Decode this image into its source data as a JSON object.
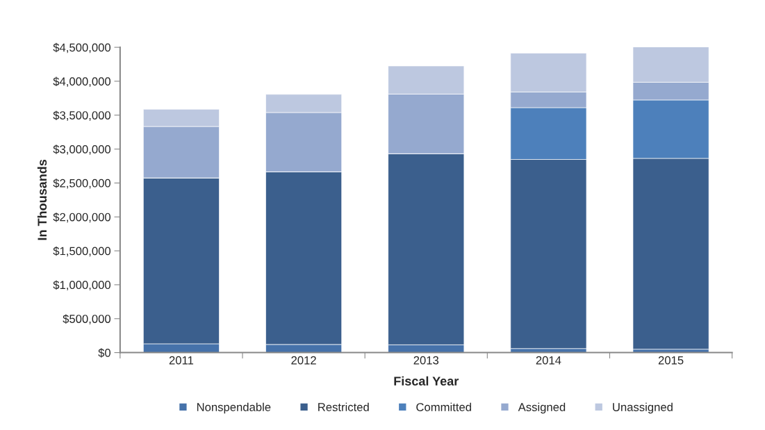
{
  "chart_data": {
    "type": "bar",
    "stacked": true,
    "xlabel": "Fiscal Year",
    "ylabel": "In Thousands",
    "categories": [
      "2011",
      "2012",
      "2013",
      "2014",
      "2015"
    ],
    "series": [
      {
        "name": "Nonspendable",
        "color": "#4672aa",
        "values": [
          130000,
          120000,
          115000,
          60000,
          50000
        ]
      },
      {
        "name": "Restricted",
        "color": "#3b5f8d",
        "values": [
          2445000,
          2545000,
          2817000,
          2787000,
          2813000
        ]
      },
      {
        "name": "Committed",
        "color": "#4d80bb",
        "values": [
          0,
          0,
          0,
          764000,
          861000
        ]
      },
      {
        "name": "Assigned",
        "color": "#95a9cf",
        "values": [
          758000,
          874000,
          878000,
          230000,
          261000
        ]
      },
      {
        "name": "Unassigned",
        "color": "#bdc8e0",
        "values": [
          254000,
          268000,
          415000,
          573000,
          532000
        ]
      }
    ],
    "ylim": [
      0,
      4500000
    ],
    "yticks": [
      {
        "value": 0,
        "label": "$0"
      },
      {
        "value": 500000,
        "label": "$500,000"
      },
      {
        "value": 1000000,
        "label": "$1,000,000"
      },
      {
        "value": 1500000,
        "label": "$1,500,000"
      },
      {
        "value": 2000000,
        "label": "$2,000,000"
      },
      {
        "value": 2500000,
        "label": "$2,500,000"
      },
      {
        "value": 3000000,
        "label": "$3,000,000"
      },
      {
        "value": 3500000,
        "label": "$3,500,000"
      },
      {
        "value": 4000000,
        "label": "$4,000,000"
      },
      {
        "value": 4500000,
        "label": "$4,500,000"
      }
    ],
    "grid": false,
    "legend": "bottom"
  }
}
